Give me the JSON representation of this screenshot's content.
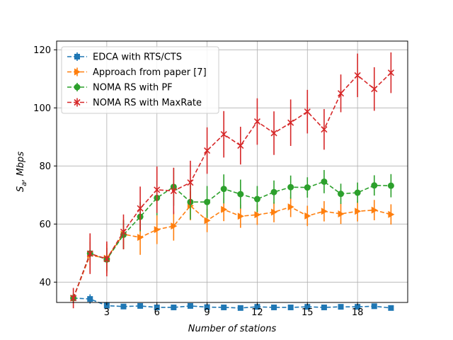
{
  "chart_data": {
    "type": "line",
    "title": "",
    "xlabel": "Number of stations",
    "ylabel": "S_a, Mbps",
    "xlim": [
      0,
      21
    ],
    "ylim": [
      33,
      123
    ],
    "xticks": [
      3,
      6,
      9,
      12,
      15,
      18
    ],
    "yticks": [
      40,
      60,
      80,
      100,
      120
    ],
    "grid": true,
    "legend_position": "top-left",
    "x": [
      1,
      2,
      3,
      4,
      5,
      6,
      7,
      8,
      9,
      10,
      11,
      12,
      13,
      14,
      15,
      16,
      17,
      18,
      19,
      20
    ],
    "series": [
      {
        "name": "EDCA with RTS/CTS",
        "color": "#1f77b4",
        "marker": "square",
        "values": [
          34.5,
          34.2,
          31.9,
          31.6,
          31.8,
          31.3,
          31.3,
          31.8,
          31.4,
          31.3,
          31.1,
          31.5,
          31.3,
          31.3,
          31.5,
          31.3,
          31.5,
          31.5,
          31.7,
          31.1
        ],
        "errors": [
          0.8,
          1.6,
          0.6,
          0.5,
          0.5,
          0.5,
          0.5,
          0.5,
          0.5,
          0.5,
          0.5,
          0.5,
          0.5,
          0.5,
          0.5,
          0.5,
          0.5,
          0.5,
          0.5,
          0.5
        ]
      },
      {
        "name": "Approach from paper [7]",
        "color": "#ff7f0e",
        "marker": "triangle-right",
        "values": [
          34.5,
          49.3,
          48.2,
          56.5,
          55.4,
          58.1,
          59.3,
          66.3,
          61.2,
          65.0,
          62.7,
          63.2,
          64.1,
          65.9,
          62.8,
          64.4,
          63.5,
          64.4,
          64.8,
          63.3
        ],
        "errors": [
          1.5,
          6.0,
          5.0,
          5.0,
          6.0,
          5.0,
          5.0,
          5.0,
          4.0,
          4.0,
          4.0,
          3.5,
          3.5,
          3.5,
          3.5,
          3.5,
          3.5,
          3.5,
          3.5,
          3.5
        ]
      },
      {
        "name": "NOMA RS with PF",
        "color": "#2ca02c",
        "marker": "circle",
        "values": [
          34.5,
          49.9,
          47.8,
          56.3,
          62.5,
          69.0,
          72.8,
          67.6,
          67.6,
          72.1,
          70.3,
          68.6,
          71.0,
          72.7,
          72.6,
          74.6,
          70.4,
          70.8,
          73.3,
          73.2
        ],
        "errors": [
          1.5,
          4.0,
          4.0,
          5.0,
          5.0,
          6.0,
          6.5,
          6.0,
          5.5,
          5.0,
          5.0,
          4.5,
          4.0,
          4.0,
          3.5,
          4.0,
          3.5,
          3.5,
          3.5,
          4.0
        ]
      },
      {
        "name": "NOMA RS with MaxRate",
        "color": "#d62728",
        "marker": "x",
        "values": [
          34.5,
          49.8,
          48.0,
          57.3,
          65.4,
          71.8,
          71.4,
          74.3,
          85.3,
          90.9,
          87.0,
          95.3,
          91.3,
          94.9,
          98.7,
          92.6,
          105.0,
          111.2,
          106.5,
          112.1
        ],
        "errors": [
          3.5,
          7.0,
          6.0,
          6.0,
          7.5,
          8.0,
          8.0,
          7.5,
          8.0,
          8.0,
          6.5,
          8.0,
          7.5,
          8.0,
          7.5,
          7.0,
          6.5,
          7.5,
          7.5,
          7.0
        ]
      }
    ]
  }
}
